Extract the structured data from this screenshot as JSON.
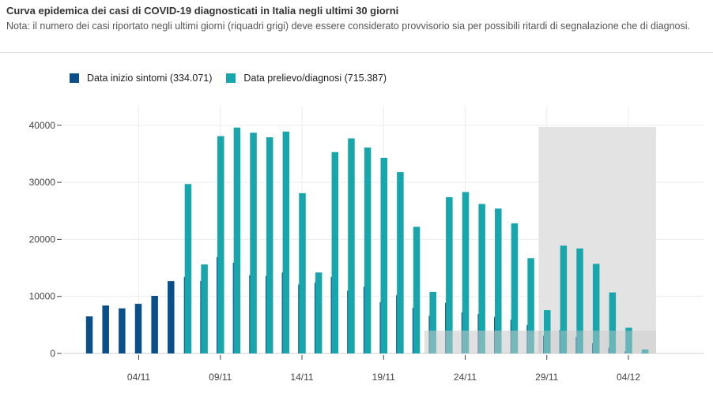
{
  "header": {
    "title": "Curva epidemica dei casi di COVID-19 diagnosticati in Italia negli ultimi 30 giorni",
    "note": "Nota: il numero dei casi riportato negli ultimi giorni (riquadri grigi) deve essere considerato provvisorio sia per possibili ritardi di segnalazione che di diagnosi."
  },
  "colors": {
    "onset": "#0b4f8a",
    "diagnosis": "#16a6ab",
    "provisional_shade": "#e3e3e3"
  },
  "chart_data": {
    "type": "bar",
    "title": "Curva epidemica dei casi di COVID-19 diagnosticati in Italia negli ultimi 30 giorni",
    "xlabel": "",
    "ylabel": "",
    "ylim": [
      0,
      42000
    ],
    "y_ticks": [
      0,
      10000,
      20000,
      30000,
      40000
    ],
    "y_tick_labels": [
      "0",
      "10000",
      "20000",
      "30000",
      "40000"
    ],
    "x_tick_labels": [
      "04/11",
      "09/11",
      "14/11",
      "19/11",
      "24/11",
      "29/11",
      "04/12"
    ],
    "x_tick_dates": [
      "2020-11-04",
      "2020-11-09",
      "2020-11-14",
      "2020-11-19",
      "2020-11-24",
      "2020-11-29",
      "2020-12-04"
    ],
    "grid": true,
    "legend_position": "top-left",
    "series": [
      {
        "name": "Data inizio sintomi (334.071)",
        "values": [
          {
            "x": "2020-11-01",
            "y": 6500
          },
          {
            "x": "2020-11-02",
            "y": 8400
          },
          {
            "x": "2020-11-03",
            "y": 7900
          },
          {
            "x": "2020-11-04",
            "y": 8700
          },
          {
            "x": "2020-11-05",
            "y": 10100
          },
          {
            "x": "2020-11-06",
            "y": 12700
          },
          {
            "x": "2020-11-07",
            "y": 13400
          },
          {
            "x": "2020-11-08",
            "y": 12700
          },
          {
            "x": "2020-11-09",
            "y": 16900
          },
          {
            "x": "2020-11-10",
            "y": 15900
          },
          {
            "x": "2020-11-11",
            "y": 13700
          },
          {
            "x": "2020-11-12",
            "y": 13600
          },
          {
            "x": "2020-11-13",
            "y": 14200
          },
          {
            "x": "2020-11-14",
            "y": 12100
          },
          {
            "x": "2020-11-15",
            "y": 12400
          },
          {
            "x": "2020-11-16",
            "y": 13400
          },
          {
            "x": "2020-11-17",
            "y": 11000
          },
          {
            "x": "2020-11-18",
            "y": 11700
          },
          {
            "x": "2020-11-19",
            "y": 9000
          },
          {
            "x": "2020-11-20",
            "y": 10200
          },
          {
            "x": "2020-11-21",
            "y": 8000
          },
          {
            "x": "2020-11-22",
            "y": 6600
          },
          {
            "x": "2020-11-23",
            "y": 8900
          },
          {
            "x": "2020-11-24",
            "y": 7200
          },
          {
            "x": "2020-11-25",
            "y": 6900
          },
          {
            "x": "2020-11-26",
            "y": 6400
          },
          {
            "x": "2020-11-27",
            "y": 5900
          },
          {
            "x": "2020-11-28",
            "y": 5000
          },
          {
            "x": "2020-11-29",
            "y": 3100
          },
          {
            "x": "2020-11-30",
            "y": 4100
          },
          {
            "x": "2020-12-01",
            "y": 2900
          },
          {
            "x": "2020-12-02",
            "y": 1800
          },
          {
            "x": "2020-12-03",
            "y": 1000
          },
          {
            "x": "2020-12-04",
            "y": 400
          },
          {
            "x": "2020-12-05",
            "y": 100
          }
        ]
      },
      {
        "name": "Data prelievo/diagnosi (715.387)",
        "values": [
          {
            "x": "2020-11-07",
            "y": 29700
          },
          {
            "x": "2020-11-08",
            "y": 15600
          },
          {
            "x": "2020-11-09",
            "y": 38100
          },
          {
            "x": "2020-11-10",
            "y": 39600
          },
          {
            "x": "2020-11-11",
            "y": 38700
          },
          {
            "x": "2020-11-12",
            "y": 37900
          },
          {
            "x": "2020-11-13",
            "y": 38900
          },
          {
            "x": "2020-11-14",
            "y": 28100
          },
          {
            "x": "2020-11-15",
            "y": 14200
          },
          {
            "x": "2020-11-16",
            "y": 35300
          },
          {
            "x": "2020-11-17",
            "y": 37700
          },
          {
            "x": "2020-11-18",
            "y": 36100
          },
          {
            "x": "2020-11-19",
            "y": 34300
          },
          {
            "x": "2020-11-20",
            "y": 31800
          },
          {
            "x": "2020-11-21",
            "y": 22200
          },
          {
            "x": "2020-11-22",
            "y": 10800
          },
          {
            "x": "2020-11-23",
            "y": 27400
          },
          {
            "x": "2020-11-24",
            "y": 28300
          },
          {
            "x": "2020-11-25",
            "y": 26200
          },
          {
            "x": "2020-11-26",
            "y": 25400
          },
          {
            "x": "2020-11-27",
            "y": 22800
          },
          {
            "x": "2020-11-28",
            "y": 16700
          },
          {
            "x": "2020-11-29",
            "y": 7600
          },
          {
            "x": "2020-11-30",
            "y": 18900
          },
          {
            "x": "2020-12-01",
            "y": 18400
          },
          {
            "x": "2020-12-02",
            "y": 15700
          },
          {
            "x": "2020-12-03",
            "y": 10700
          },
          {
            "x": "2020-12-04",
            "y": 4500
          },
          {
            "x": "2020-12-05",
            "y": 700
          }
        ]
      }
    ],
    "provisional_regions": [
      {
        "x_start": "2020-11-29",
        "x_end": "2020-12-06",
        "y_top": 39700
      },
      {
        "x_start": "2020-11-22",
        "x_end": "2020-11-29",
        "y_top": 4000
      }
    ]
  }
}
